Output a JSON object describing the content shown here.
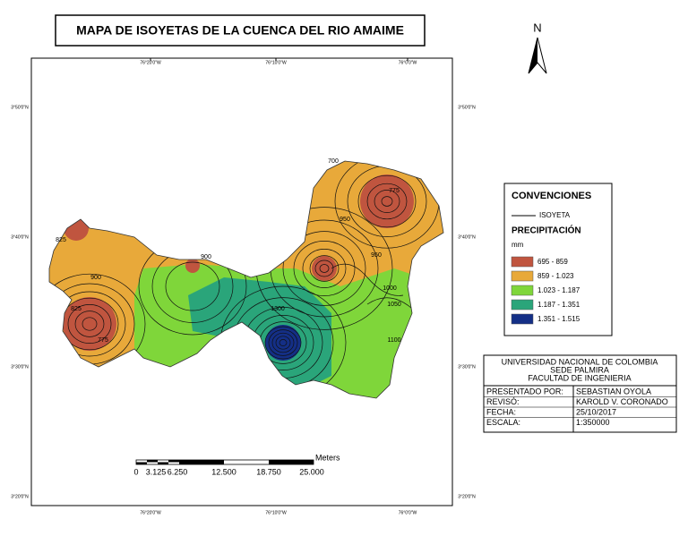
{
  "title": "MAPA DE ISOYETAS DE LA CUENCA DEL RIO AMAIME",
  "north": "N",
  "coordinates": {
    "top": [
      "76°20'0\"W",
      "76°10'0\"W",
      "76°0'0\"W"
    ],
    "bottom": [
      "76°20'0\"W",
      "76°10'0\"W",
      "76°0'0\"W"
    ],
    "left": [
      "3°50'0\"N",
      "3°40'0\"N",
      "3°30'0\"N",
      "3°20'0\"N"
    ],
    "right": [
      "3°50'0\"N",
      "3°40'0\"N",
      "3°30'0\"N",
      "3°20'0\"N"
    ]
  },
  "contour_labels": [
    "700",
    "775",
    "825",
    "900",
    "950",
    "1000",
    "1050",
    "1100",
    "1300",
    "775",
    "825",
    "900",
    "950"
  ],
  "scale_bar": {
    "unit": "Meters",
    "labels": [
      "0",
      "3.125",
      "6.250",
      "12.500",
      "18.750",
      "25.000"
    ]
  },
  "legend": {
    "title": "CONVENCIONES",
    "line_label": "ISOYETA",
    "precipitation_title": "PRECIPITACIÓN",
    "unit": "mm",
    "classes": [
      {
        "label": "695 - 859",
        "color": "#c0553f"
      },
      {
        "label": "859 - 1.023",
        "color": "#e8a93a"
      },
      {
        "label": "1.023 - 1.187",
        "color": "#7fd63a"
      },
      {
        "label": "1.187 - 1.351",
        "color": "#2aa57a"
      },
      {
        "label": "1.351 - 1.515",
        "color": "#142f86"
      }
    ]
  },
  "info": {
    "lines": [
      "UNIVERSIDAD NACIONAL DE COLOMBIA",
      "SEDE PALMIRA",
      "FACULTAD DE INGENIERIA"
    ],
    "rows": [
      [
        "PRESENTADO POR:",
        "SEBASTIAN OYOLA"
      ],
      [
        "REVISÓ:",
        "KAROLD V. CORONADO"
      ],
      [
        "FECHA:",
        "25/10/2017"
      ],
      [
        "ESCALA:",
        "1:350000"
      ]
    ]
  }
}
